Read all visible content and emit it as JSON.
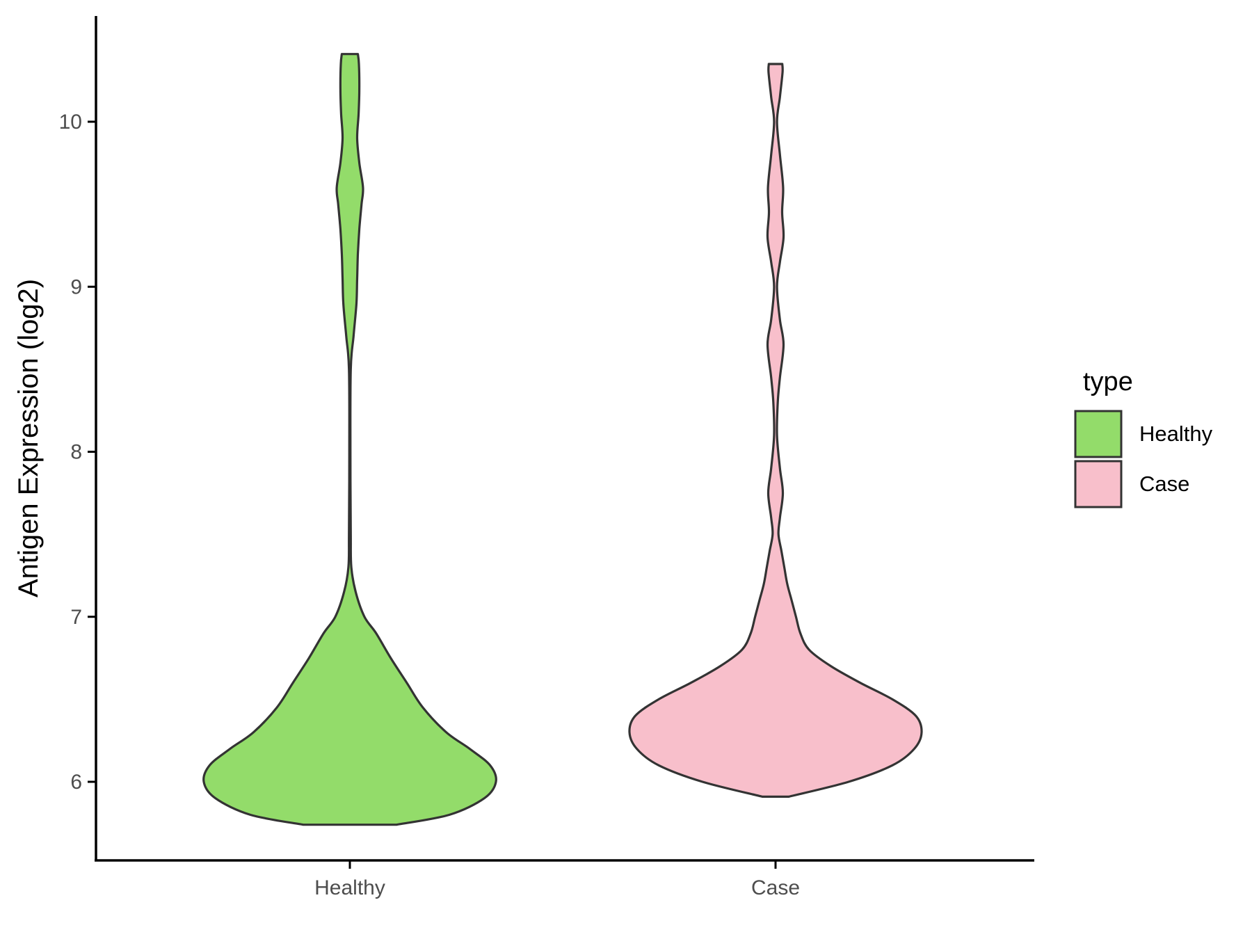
{
  "chart_data": {
    "type": "violin",
    "title": "",
    "xlabel": "",
    "ylabel": "Antigen Expression (log2)",
    "ylim": [
      5.5,
      10.65
    ],
    "yticks": [
      6,
      7,
      8,
      9,
      10
    ],
    "categories": [
      "Healthy",
      "Case"
    ],
    "legend": {
      "title": "type",
      "position": "right",
      "entries": [
        "Healthy",
        "Case"
      ]
    },
    "grid": false,
    "series": [
      {
        "name": "Healthy",
        "color": "#93dc6a",
        "min": 5.74,
        "max": 10.41,
        "density_profile": [
          [
            5.74,
            0.32
          ],
          [
            5.8,
            0.68
          ],
          [
            5.9,
            0.92
          ],
          [
            6.0,
            1.0
          ],
          [
            6.1,
            0.96
          ],
          [
            6.2,
            0.82
          ],
          [
            6.3,
            0.66
          ],
          [
            6.45,
            0.5
          ],
          [
            6.6,
            0.39
          ],
          [
            6.75,
            0.28
          ],
          [
            6.9,
            0.18
          ],
          [
            7.0,
            0.1
          ],
          [
            7.15,
            0.04
          ],
          [
            7.3,
            0.01
          ],
          [
            7.5,
            0.006
          ],
          [
            8.0,
            0.004
          ],
          [
            8.5,
            0.006
          ],
          [
            8.7,
            0.025
          ],
          [
            8.9,
            0.045
          ],
          [
            9.05,
            0.05
          ],
          [
            9.2,
            0.055
          ],
          [
            9.35,
            0.065
          ],
          [
            9.5,
            0.08
          ],
          [
            9.6,
            0.09
          ],
          [
            9.75,
            0.065
          ],
          [
            9.9,
            0.05
          ],
          [
            10.05,
            0.06
          ],
          [
            10.2,
            0.065
          ],
          [
            10.35,
            0.062
          ],
          [
            10.41,
            0.055
          ]
        ]
      },
      {
        "name": "Case",
        "color": "#f8bfcb",
        "min": 5.91,
        "max": 10.35,
        "density_profile": [
          [
            5.91,
            0.09
          ],
          [
            6.0,
            0.5
          ],
          [
            6.1,
            0.8
          ],
          [
            6.2,
            0.95
          ],
          [
            6.3,
            1.0
          ],
          [
            6.4,
            0.96
          ],
          [
            6.5,
            0.8
          ],
          [
            6.6,
            0.58
          ],
          [
            6.7,
            0.38
          ],
          [
            6.8,
            0.23
          ],
          [
            6.9,
            0.17
          ],
          [
            7.0,
            0.14
          ],
          [
            7.1,
            0.11
          ],
          [
            7.2,
            0.08
          ],
          [
            7.3,
            0.06
          ],
          [
            7.4,
            0.04
          ],
          [
            7.5,
            0.02
          ],
          [
            7.6,
            0.03
          ],
          [
            7.75,
            0.05
          ],
          [
            7.9,
            0.03
          ],
          [
            8.1,
            0.01
          ],
          [
            8.3,
            0.015
          ],
          [
            8.45,
            0.03
          ],
          [
            8.65,
            0.055
          ],
          [
            8.8,
            0.03
          ],
          [
            9.0,
            0.01
          ],
          [
            9.15,
            0.03
          ],
          [
            9.3,
            0.055
          ],
          [
            9.45,
            0.045
          ],
          [
            9.6,
            0.052
          ],
          [
            9.8,
            0.03
          ],
          [
            10.0,
            0.01
          ],
          [
            10.15,
            0.03
          ],
          [
            10.3,
            0.048
          ],
          [
            10.35,
            0.046
          ]
        ]
      }
    ]
  }
}
